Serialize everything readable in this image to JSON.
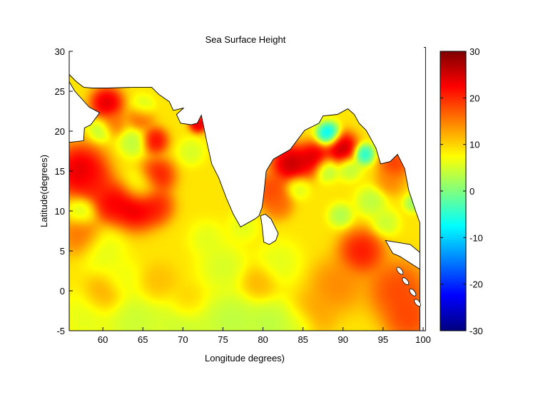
{
  "chart_data": {
    "type": "heatmap",
    "title": "Sea Surface Height",
    "xlabel": "Longitude degrees)",
    "ylabel": "Latitude(degrees)",
    "xlim": [
      55.8,
      100
    ],
    "ylim": [
      -5,
      30
    ],
    "xticks": [
      60,
      65,
      70,
      75,
      80,
      85,
      90,
      95,
      100
    ],
    "yticks": [
      -5,
      0,
      5,
      10,
      15,
      20,
      25,
      30
    ],
    "colormap": "jet",
    "clim": [
      -30,
      30
    ],
    "colorbar_ticks": [
      -30,
      -20,
      -10,
      0,
      10,
      20,
      30
    ],
    "colorbar_position": "right",
    "grid": false,
    "background_value": 9,
    "anomalies": [
      {
        "lon": 60.5,
        "lat": 23.5,
        "value": 29,
        "radius": 1.1
      },
      {
        "lon": 57.2,
        "lat": 15.0,
        "value": 29,
        "radius": 1.8
      },
      {
        "lon": 58.8,
        "lat": 13.5,
        "value": 22,
        "radius": 1.2
      },
      {
        "lon": 61.0,
        "lat": 11.0,
        "value": 26,
        "radius": 1.4
      },
      {
        "lon": 64.1,
        "lat": 10.6,
        "value": 29,
        "radius": 1.6
      },
      {
        "lon": 66.6,
        "lat": 10.6,
        "value": 23,
        "radius": 1.2
      },
      {
        "lon": 66.8,
        "lat": 14.4,
        "value": 25,
        "radius": 1.2
      },
      {
        "lon": 66.5,
        "lat": 18.8,
        "value": 26,
        "radius": 0.9
      },
      {
        "lon": 64.7,
        "lat": 21.7,
        "value": 19,
        "radius": 0.9
      },
      {
        "lon": 61.3,
        "lat": 21.0,
        "value": 17,
        "radius": 0.9
      },
      {
        "lon": 71.9,
        "lat": 20.9,
        "value": 29,
        "radius": 0.6
      },
      {
        "lon": 64.7,
        "lat": 13.0,
        "value": 2,
        "radius": 1.2
      },
      {
        "lon": 63.8,
        "lat": 18.6,
        "value": 2,
        "radius": 1.0
      },
      {
        "lon": 59.7,
        "lat": 20.1,
        "value": 2,
        "radius": 0.8
      },
      {
        "lon": 65.0,
        "lat": 23.0,
        "value": 3,
        "radius": 0.8
      },
      {
        "lon": 57.4,
        "lat": 9.9,
        "value": 3,
        "radius": 1.0
      },
      {
        "lon": 71.0,
        "lat": 17.4,
        "value": 4,
        "radius": 0.9
      },
      {
        "lon": 57.3,
        "lat": 7.0,
        "value": 18,
        "radius": 1.4
      },
      {
        "lon": 89.8,
        "lat": 17.9,
        "value": 31,
        "radius": 1.1
      },
      {
        "lon": 83.5,
        "lat": 15.9,
        "value": 31,
        "radius": 1.3
      },
      {
        "lon": 86.4,
        "lat": 16.6,
        "value": 29,
        "radius": 1.1
      },
      {
        "lon": 88.2,
        "lat": 19.6,
        "value": -15,
        "radius": 0.8
      },
      {
        "lon": 92.6,
        "lat": 17.1,
        "value": -10,
        "radius": 0.7
      },
      {
        "lon": 87.9,
        "lat": 15.2,
        "value": 0,
        "radius": 0.8
      },
      {
        "lon": 90.8,
        "lat": 15.3,
        "value": 2,
        "radius": 0.8
      },
      {
        "lon": 84.3,
        "lat": 12.9,
        "value": 4,
        "radius": 0.8
      },
      {
        "lon": 89.7,
        "lat": 9.4,
        "value": 1,
        "radius": 0.8
      },
      {
        "lon": 93.5,
        "lat": 11.2,
        "value": 2,
        "radius": 1.0
      },
      {
        "lon": 95.3,
        "lat": 8.5,
        "value": 3,
        "radius": 0.9
      },
      {
        "lon": 98.7,
        "lat": 11.0,
        "value": 0,
        "radius": 0.6
      },
      {
        "lon": 81.0,
        "lat": 12.6,
        "value": 21,
        "radius": 1.2
      },
      {
        "lon": 81.9,
        "lat": 10.8,
        "value": 18,
        "radius": 1.0
      },
      {
        "lon": 96.4,
        "lat": 15.9,
        "value": 22,
        "radius": 1.0
      },
      {
        "lon": 95.9,
        "lat": 13.8,
        "value": 16,
        "radius": 1.0
      },
      {
        "lon": 92.3,
        "lat": 4.9,
        "value": 25,
        "radius": 1.5
      },
      {
        "lon": 96.8,
        "lat": 0.1,
        "value": 21,
        "radius": 2.0
      },
      {
        "lon": 98.2,
        "lat": -3.5,
        "value": 21,
        "radius": 1.6
      },
      {
        "lon": 89.3,
        "lat": 0.7,
        "value": 16,
        "radius": 1.8
      },
      {
        "lon": 86.4,
        "lat": -2.9,
        "value": 14,
        "radius": 1.5
      },
      {
        "lon": 58.0,
        "lat": -3.3,
        "value": 5,
        "radius": 1.8
      },
      {
        "lon": 64.0,
        "lat": -3.8,
        "value": 3,
        "radius": 2.0
      },
      {
        "lon": 70.0,
        "lat": -4.0,
        "value": 3,
        "radius": 2.0
      },
      {
        "lon": 76.0,
        "lat": -3.7,
        "value": 2,
        "radius": 2.0
      },
      {
        "lon": 81.0,
        "lat": -4.2,
        "value": 2,
        "radius": 1.8
      },
      {
        "lon": 84.5,
        "lat": -4.3,
        "value": 4,
        "radius": 1.2
      },
      {
        "lon": 60.0,
        "lat": 5.0,
        "value": 5,
        "radius": 1.5
      },
      {
        "lon": 75.0,
        "lat": 3.0,
        "value": 4,
        "radius": 1.6
      },
      {
        "lon": 73.0,
        "lat": 6.5,
        "value": 5,
        "radius": 1.2
      },
      {
        "lon": 82.0,
        "lat": 3.5,
        "value": 5,
        "radius": 1.5
      },
      {
        "lon": 62.5,
        "lat": 1.5,
        "value": 6,
        "radius": 1.3
      },
      {
        "lon": 60.0,
        "lat": -0.5,
        "value": 14,
        "radius": 1.3
      },
      {
        "lon": 67.0,
        "lat": 1.0,
        "value": 12,
        "radius": 1.3
      },
      {
        "lon": 70.5,
        "lat": -1.5,
        "value": 12,
        "radius": 1.2
      },
      {
        "lon": 77.5,
        "lat": 8.0,
        "value": 5,
        "radius": 1.0
      },
      {
        "lon": 79.5,
        "lat": 1.0,
        "value": 13,
        "radius": 1.2
      }
    ],
    "land": [
      [
        [
          55.8,
          27.1
        ],
        [
          56.7,
          26.2
        ],
        [
          57.6,
          25.5
        ],
        [
          58.7,
          25.4
        ],
        [
          60.5,
          25.4
        ],
        [
          64.1,
          25.5
        ],
        [
          66.1,
          25.5
        ],
        [
          67.0,
          24.6
        ],
        [
          68.3,
          23.7
        ],
        [
          68.8,
          22.6
        ],
        [
          70.1,
          22.9
        ],
        [
          69.2,
          22.1
        ],
        [
          69.7,
          21.0
        ],
        [
          71.0,
          20.8
        ],
        [
          71.8,
          21.0
        ],
        [
          72.3,
          22.0
        ],
        [
          72.7,
          20.1
        ],
        [
          73.0,
          18.6
        ],
        [
          73.6,
          15.9
        ],
        [
          74.5,
          14.1
        ],
        [
          75.4,
          11.7
        ],
        [
          76.3,
          9.6
        ],
        [
          77.2,
          8.0
        ],
        [
          78.1,
          8.5
        ],
        [
          79.0,
          9.0
        ],
        [
          79.5,
          9.4
        ],
        [
          79.9,
          10.5
        ],
        [
          80.1,
          12.1
        ],
        [
          80.4,
          15.0
        ],
        [
          81.3,
          16.5
        ],
        [
          83.4,
          17.7
        ],
        [
          85.2,
          20.1
        ],
        [
          87.0,
          21.0
        ],
        [
          87.5,
          21.9
        ],
        [
          89.3,
          22.1
        ],
        [
          90.6,
          22.8
        ],
        [
          91.4,
          22.1
        ],
        [
          92.0,
          21.0
        ],
        [
          92.9,
          20.1
        ],
        [
          94.1,
          17.9
        ],
        [
          94.7,
          15.9
        ],
        [
          95.9,
          16.2
        ],
        [
          96.8,
          17.1
        ],
        [
          97.7,
          15.3
        ],
        [
          98.2,
          12.6
        ],
        [
          98.6,
          11.4
        ],
        [
          99.1,
          9.9
        ],
        [
          99.6,
          8.5
        ],
        [
          99.6,
          -5
        ],
        [
          100.3,
          -5
        ],
        [
          100.3,
          31
        ],
        [
          55.8,
          31
        ]
      ],
      [
        [
          55.8,
          26.2
        ],
        [
          56.5,
          25.0
        ],
        [
          58.3,
          23.0
        ],
        [
          59.6,
          22.3
        ],
        [
          58.5,
          20.8
        ],
        [
          57.7,
          20.4
        ],
        [
          57.6,
          18.8
        ],
        [
          55.8,
          18.6
        ]
      ],
      [
        [
          79.7,
          9.4
        ],
        [
          79.9,
          8.1
        ],
        [
          80.1,
          6.1
        ],
        [
          80.8,
          5.8
        ],
        [
          81.6,
          6.3
        ],
        [
          81.9,
          7.2
        ],
        [
          81.0,
          9.0
        ],
        [
          80.3,
          9.6
        ]
      ],
      [
        [
          95.3,
          6.3
        ],
        [
          98.4,
          5.8
        ],
        [
          99.6,
          4.8
        ],
        [
          99.6,
          2.7
        ],
        [
          97.1,
          4.3
        ],
        [
          96.2,
          4.7
        ]
      ]
    ],
    "islands": [
      [
        97.1,
        2.5
      ],
      [
        97.8,
        1.2
      ],
      [
        98.7,
        -0.2
      ],
      [
        99.3,
        -1.5
      ]
    ]
  }
}
